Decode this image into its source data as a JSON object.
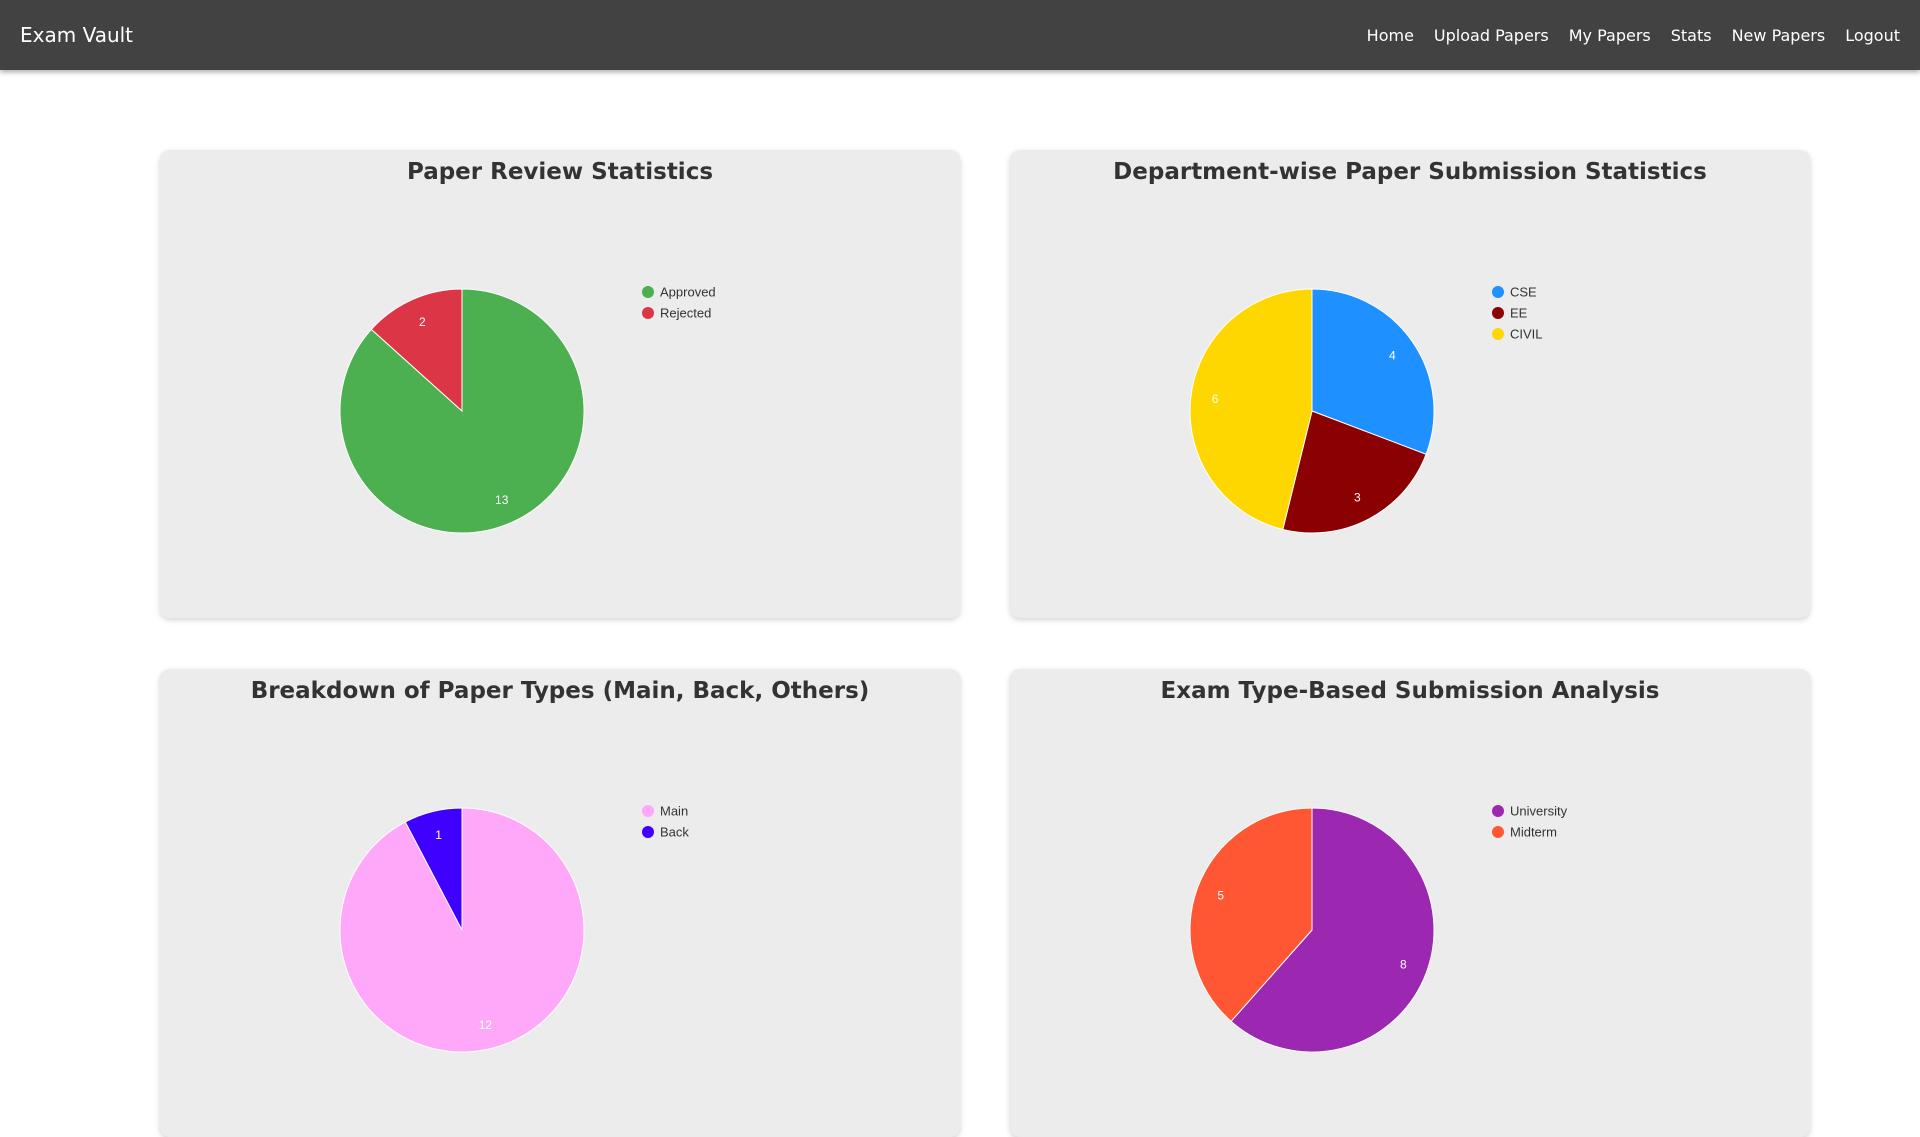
{
  "app": {
    "brand": "Exam Vault"
  },
  "nav": {
    "items": [
      {
        "label": "Home",
        "name": "nav-home"
      },
      {
        "label": "Upload Papers",
        "name": "nav-upload-papers"
      },
      {
        "label": "My Papers",
        "name": "nav-my-papers"
      },
      {
        "label": "Stats",
        "name": "nav-stats"
      },
      {
        "label": "New Papers",
        "name": "nav-new-papers"
      },
      {
        "label": "Logout",
        "name": "nav-logout"
      }
    ]
  },
  "cards": [
    {
      "title": "Paper Review Statistics"
    },
    {
      "title": "Department-wise Paper Submission Statistics"
    },
    {
      "title": "Breakdown of Paper Types (Main, Back, Others)"
    },
    {
      "title": "Exam Type-Based Submission Analysis"
    }
  ],
  "chart_data": [
    {
      "type": "pie",
      "title": "Paper Review Statistics",
      "categories": [
        "Approved",
        "Rejected"
      ],
      "values": [
        13,
        2
      ],
      "colors": [
        "#4caf50",
        "#dc3545"
      ],
      "legend": "top-right"
    },
    {
      "type": "pie",
      "title": "Department-wise Paper Submission Statistics",
      "categories": [
        "CSE",
        "EE",
        "CIVIL"
      ],
      "values": [
        4,
        3,
        6
      ],
      "colors": [
        "#1e90ff",
        "#8b0000",
        "#ffd700"
      ],
      "legend": "top-right"
    },
    {
      "type": "pie",
      "title": "Breakdown of Paper Types (Main, Back, Others)",
      "categories": [
        "Main",
        "Back"
      ],
      "values": [
        12,
        1
      ],
      "colors": [
        "#ffa8f9",
        "#3f00ff"
      ],
      "legend": "top-right"
    },
    {
      "type": "pie",
      "title": "Exam Type-Based Submission Analysis",
      "categories": [
        "University",
        "Midterm"
      ],
      "values": [
        8,
        5
      ],
      "colors": [
        "#9c27b0",
        "#ff5733"
      ],
      "legend": "top-right"
    }
  ]
}
